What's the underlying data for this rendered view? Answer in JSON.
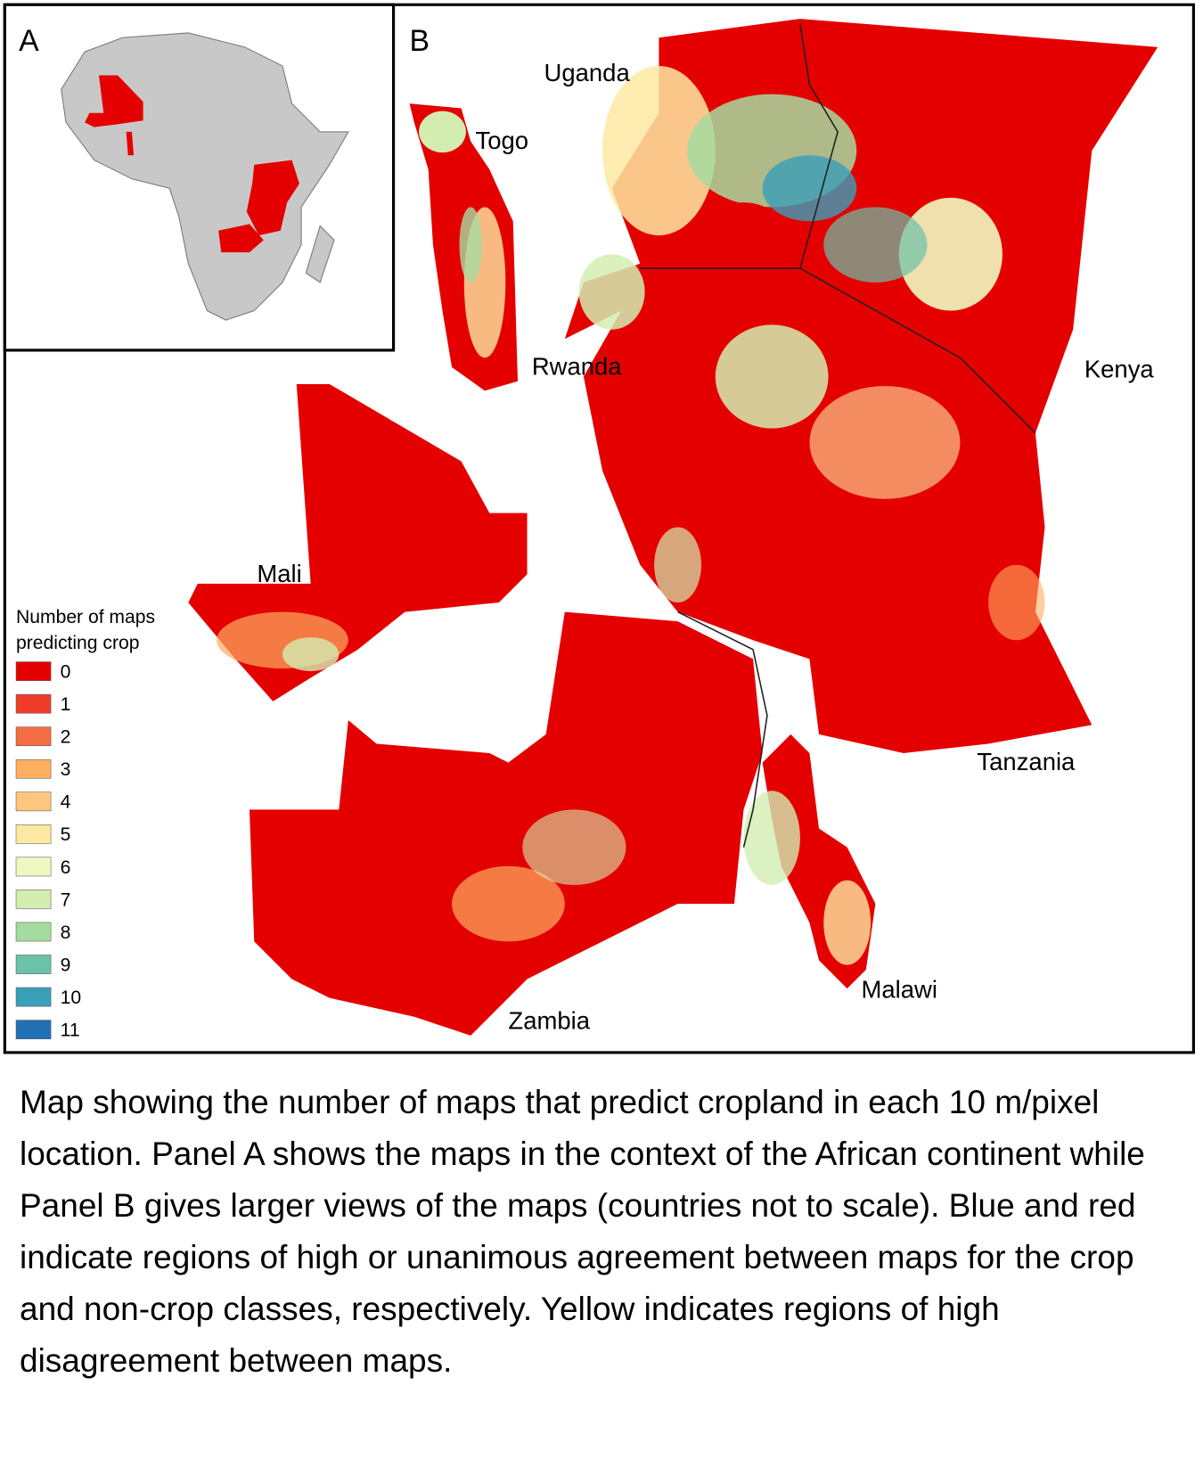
{
  "panel_a": {
    "label": "A"
  },
  "panel_b": {
    "label": "B",
    "countries": [
      "Uganda",
      "Togo",
      "Rwanda",
      "Kenya",
      "Mali",
      "Tanzania",
      "Malawi",
      "Zambia"
    ]
  },
  "legend": {
    "title_lines": [
      "Number of maps",
      "predicting crop"
    ],
    "items": [
      {
        "label": 0,
        "color": "#e50000"
      },
      {
        "label": 1,
        "color": "#f03c2a"
      },
      {
        "label": 2,
        "color": "#f46d43"
      },
      {
        "label": 3,
        "color": "#fdae61"
      },
      {
        "label": 4,
        "color": "#fdc67c"
      },
      {
        "label": 5,
        "color": "#fee9a2"
      },
      {
        "label": 6,
        "color": "#eff8c0"
      },
      {
        "label": 7,
        "color": "#d3edb1"
      },
      {
        "label": 8,
        "color": "#a6dba0"
      },
      {
        "label": 9,
        "color": "#6cc2a8"
      },
      {
        "label": 10,
        "color": "#3a9fb8"
      },
      {
        "label": 11,
        "color": "#2171b5"
      }
    ]
  },
  "caption": "Map showing the number of maps that predict cropland in each 10 m/pixel location. Panel A shows the maps in the context of the African continent while Panel B gives larger views of the maps (countries not to scale). Blue and red indicate regions of high or unanimous agreement between maps for the crop and non-crop classes, respectively. Yellow indicates regions of high disagreement between maps."
}
